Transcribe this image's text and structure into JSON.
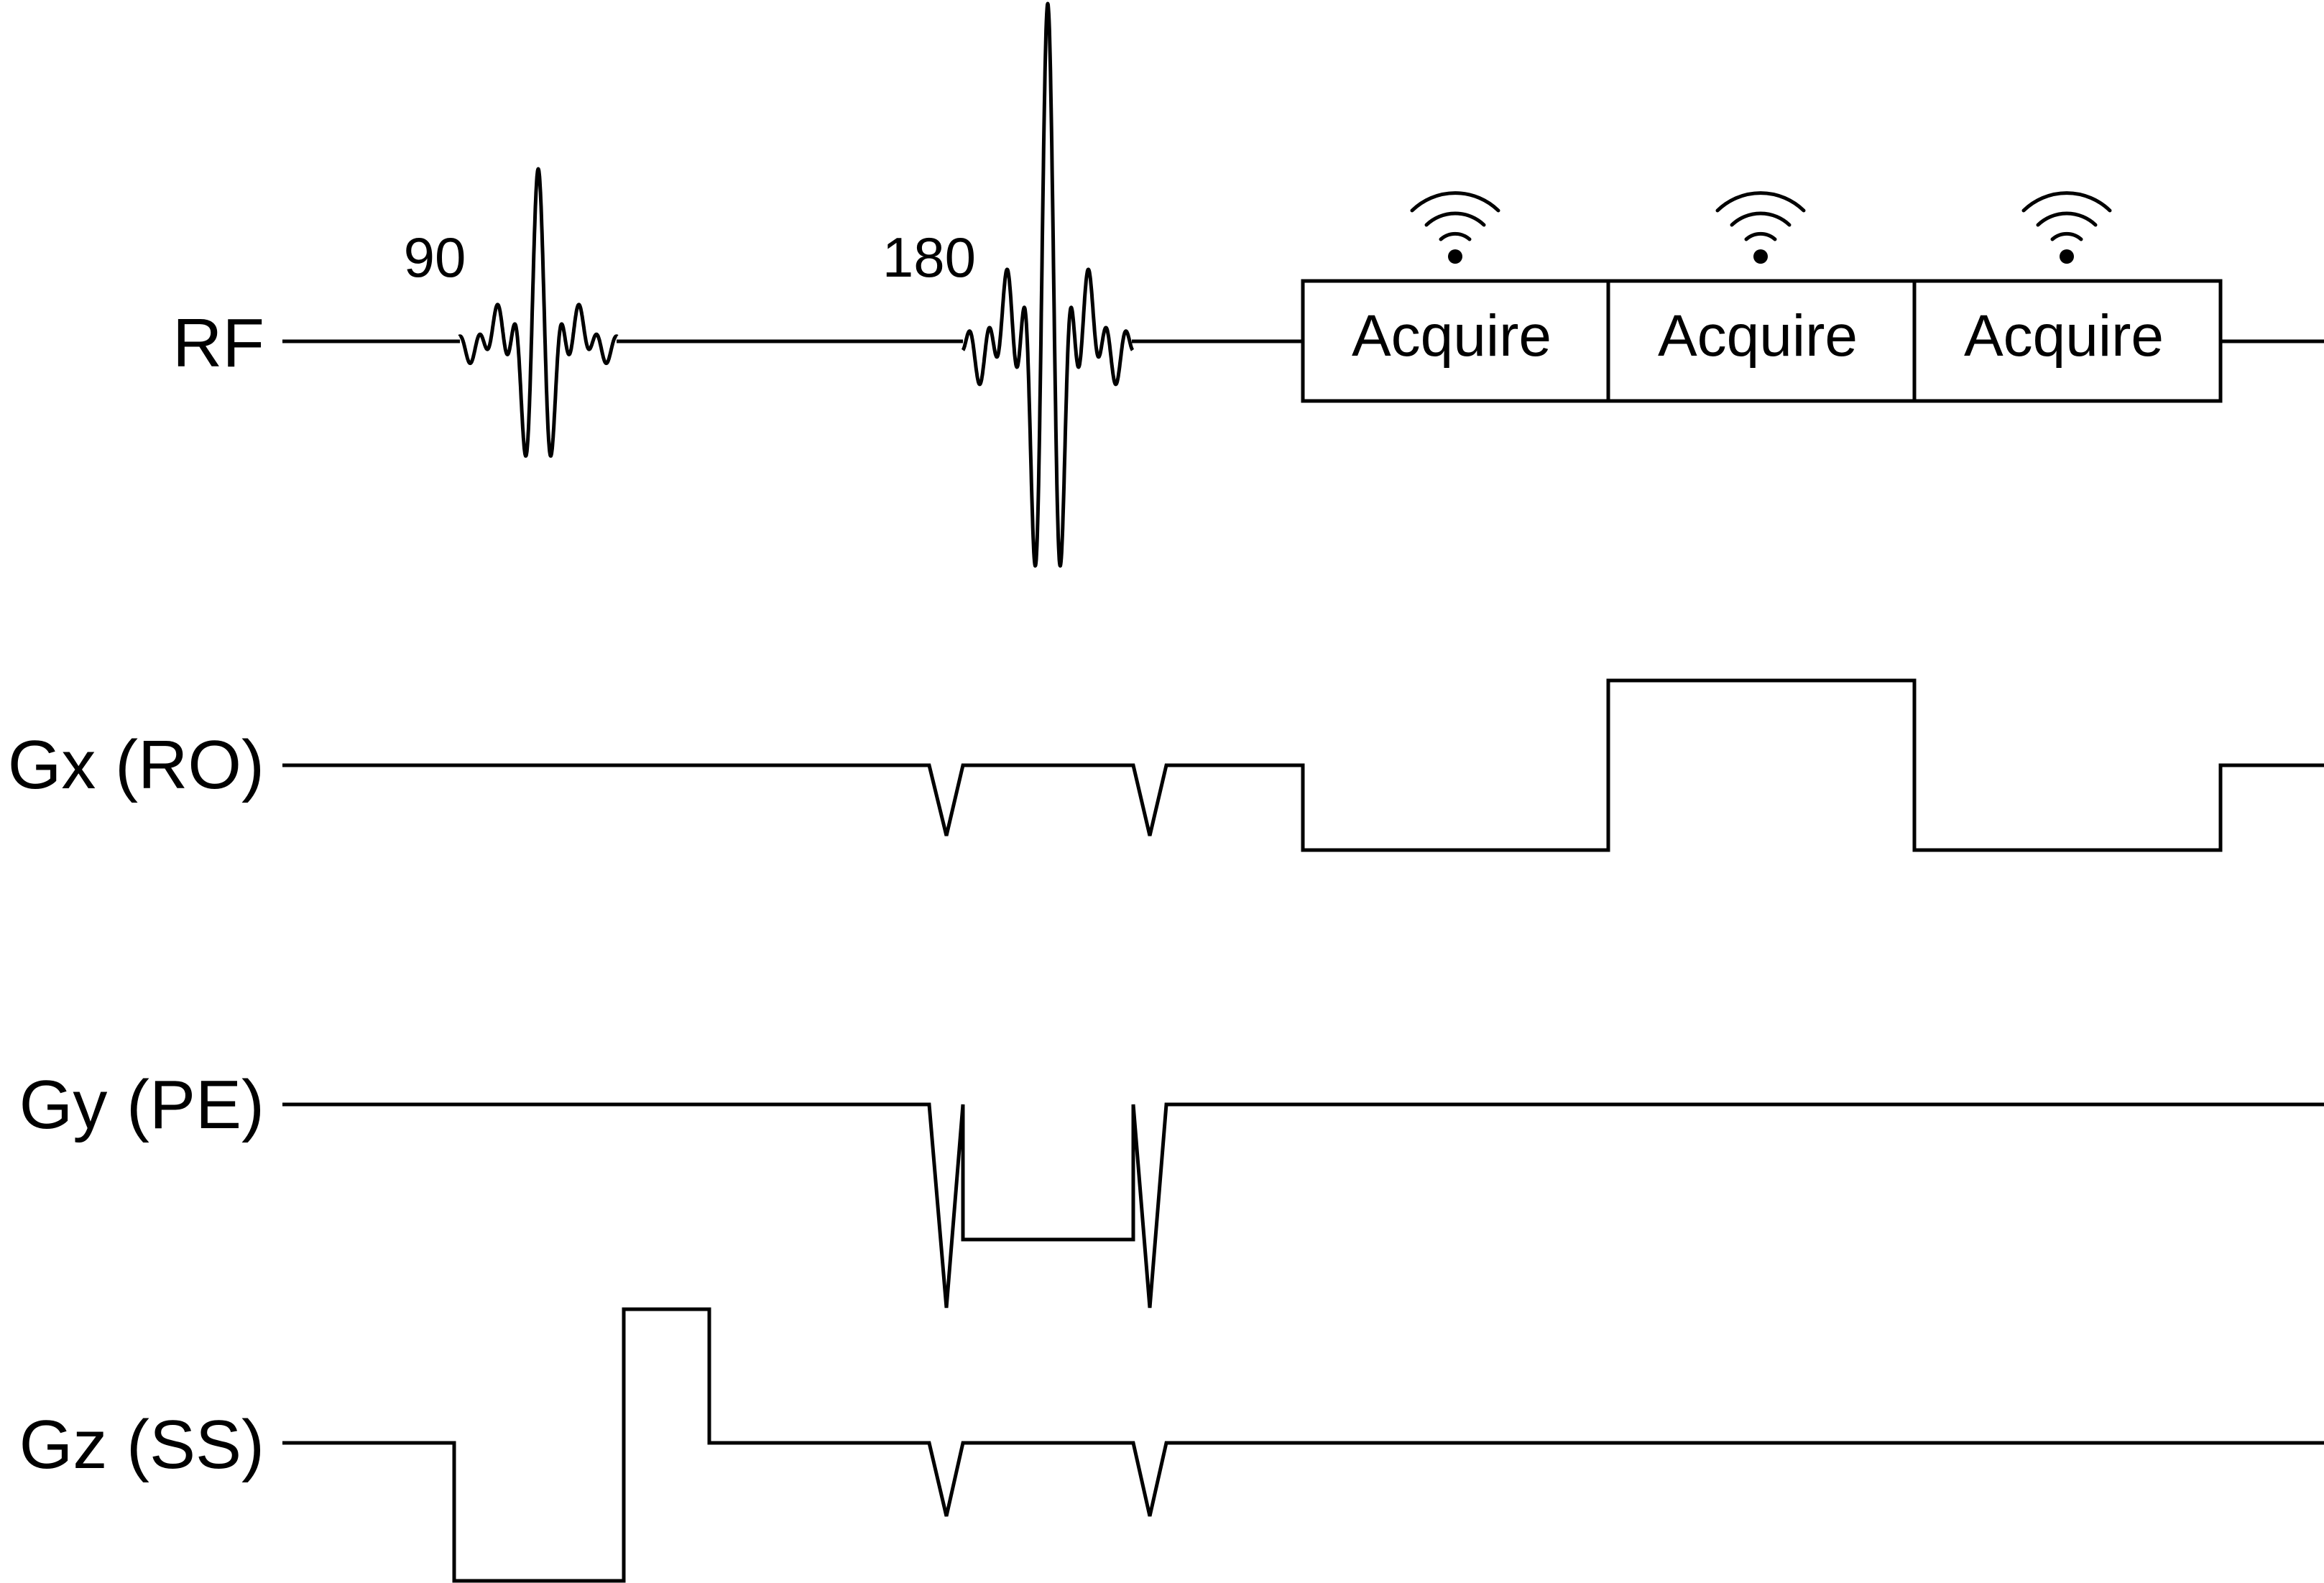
{
  "rows": {
    "rf": "RF",
    "gx": "Gx (RO)",
    "gy": "Gy (PE)",
    "gz": "Gz (SS)"
  },
  "pulses": {
    "p90": "90",
    "p180": "180"
  },
  "acquire_boxes": [
    "Acquire",
    "Acquire",
    "Acquire"
  ],
  "icons": {
    "signal": "signal-wave-icon"
  }
}
